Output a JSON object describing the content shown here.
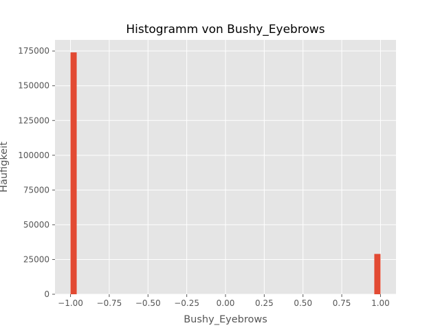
{
  "chart_data": {
    "type": "bar",
    "title": "Histogramm von Bushy_Eyebrows",
    "xlabel": "Bushy_Eyebrows",
    "ylabel": "Häufigkeit",
    "xlim": [
      -1.1,
      1.1
    ],
    "ylim": [
      0,
      183000
    ],
    "x_ticks": [
      -1.0,
      -0.75,
      -0.5,
      -0.25,
      0.0,
      0.25,
      0.5,
      0.75,
      1.0
    ],
    "x_tick_labels": [
      "−1.00",
      "−0.75",
      "−0.50",
      "−0.25",
      "0.00",
      "0.25",
      "0.50",
      "0.75",
      "1.00"
    ],
    "y_ticks": [
      0,
      25000,
      50000,
      75000,
      100000,
      125000,
      150000,
      175000
    ],
    "y_tick_labels": [
      "0",
      "25000",
      "50000",
      "75000",
      "100000",
      "125000",
      "150000",
      "175000"
    ],
    "bins": [
      {
        "x0": -1.0,
        "x1": -0.96,
        "count": 174000
      },
      {
        "x0": 0.96,
        "x1": 1.0,
        "count": 29000
      }
    ],
    "grid": true,
    "colors": {
      "bar": "#E24A33",
      "background": "#E5E5E5",
      "grid": "#ffffff"
    }
  }
}
